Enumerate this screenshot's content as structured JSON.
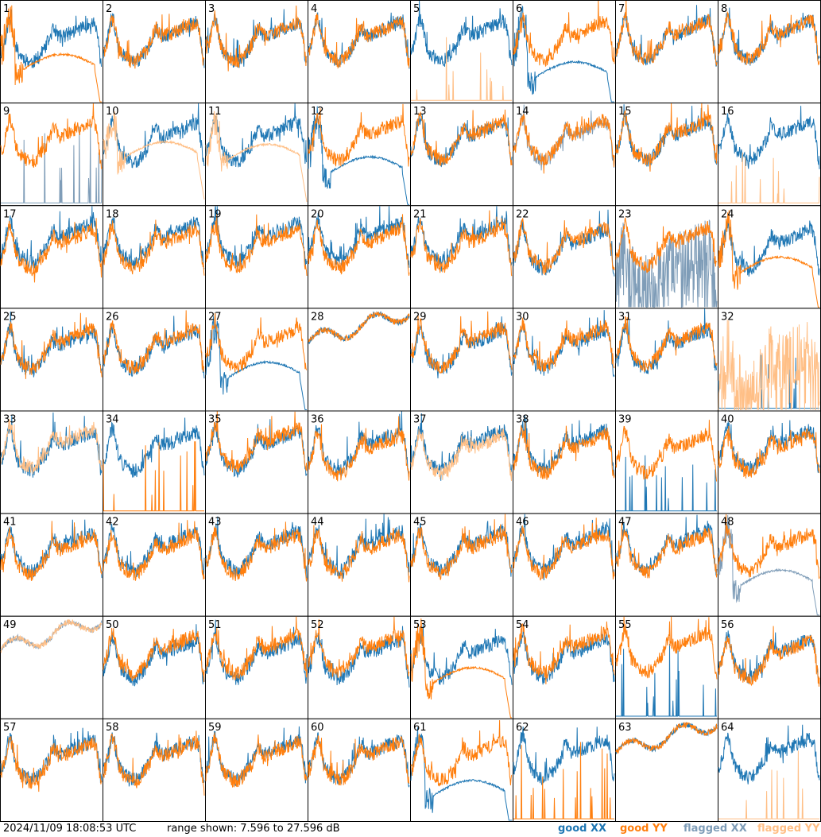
{
  "footer": {
    "timestamp": "2024/11/09 18:08:53 UTC",
    "range_text": "range shown: 7.596 to 27.596 dB"
  },
  "legend": [
    {
      "key": "good_xx",
      "label": "good XX",
      "color": "#1f77b4"
    },
    {
      "key": "good_yy",
      "label": "good YY",
      "color": "#ff7f0e"
    },
    {
      "key": "flagged_xx",
      "label": "flagged XX",
      "color": "#7f9db8"
    },
    {
      "key": "flagged_yy",
      "label": "flagged YY",
      "color": "#ffbf86"
    }
  ],
  "chart_data": {
    "type": "line",
    "title": "",
    "xlabel": "",
    "ylabel": "",
    "ylim": [
      7.596,
      27.596
    ],
    "unit": "dB",
    "grid": {
      "rows": 8,
      "cols": 8
    },
    "panels": [
      {
        "id": "1",
        "xx": "good",
        "yy": "good",
        "xx_profile": "standard",
        "yy_profile": "dropout",
        "yy_level": 14.0
      },
      {
        "id": "2",
        "xx": "good",
        "yy": "good",
        "xx_profile": "standard",
        "yy_profile": "standard"
      },
      {
        "id": "3",
        "xx": "good",
        "yy": "good",
        "xx_profile": "standard",
        "yy_profile": "standard"
      },
      {
        "id": "4",
        "xx": "good",
        "yy": "good",
        "xx_profile": "standard",
        "yy_profile": "standard"
      },
      {
        "id": "5",
        "xx": "good",
        "yy": "flagged",
        "xx_profile": "standard",
        "yy_profile": "spikes"
      },
      {
        "id": "6",
        "xx": "good",
        "yy": "good",
        "xx_profile": "dropout",
        "yy_profile": "standard",
        "xx_level": 12.5
      },
      {
        "id": "7",
        "xx": "good",
        "yy": "good",
        "xx_profile": "standard",
        "yy_profile": "standard"
      },
      {
        "id": "8",
        "xx": "good",
        "yy": "good",
        "xx_profile": "standard",
        "yy_profile": "standard"
      },
      {
        "id": "9",
        "xx": "flagged",
        "yy": "good",
        "xx_profile": "spikes",
        "yy_profile": "standard"
      },
      {
        "id": "10",
        "xx": "good",
        "yy": "flagged",
        "xx_profile": "standard",
        "yy_profile": "dropout",
        "yy_level": 17.0
      },
      {
        "id": "11",
        "xx": "good",
        "yy": "flagged",
        "xx_profile": "standard",
        "yy_profile": "dropout",
        "yy_level": 16.5
      },
      {
        "id": "12",
        "xx": "good",
        "yy": "good",
        "xx_profile": "dropout",
        "yy_profile": "standard",
        "xx_level": 14.0
      },
      {
        "id": "13",
        "xx": "good",
        "yy": "good",
        "xx_profile": "standard",
        "yy_profile": "standard"
      },
      {
        "id": "14",
        "xx": "flagged",
        "yy": "good",
        "xx_profile": "standard",
        "yy_profile": "standard"
      },
      {
        "id": "15",
        "xx": "good",
        "yy": "good",
        "xx_profile": "standard",
        "yy_profile": "standard"
      },
      {
        "id": "16",
        "xx": "good",
        "yy": "flagged",
        "xx_profile": "standard",
        "yy_profile": "spikes"
      },
      {
        "id": "17",
        "xx": "good",
        "yy": "good",
        "xx_profile": "standard",
        "yy_profile": "standard"
      },
      {
        "id": "18",
        "xx": "good",
        "yy": "good",
        "xx_profile": "standard",
        "yy_profile": "standard"
      },
      {
        "id": "19",
        "xx": "good",
        "yy": "good",
        "xx_profile": "standard",
        "yy_profile": "standard"
      },
      {
        "id": "20",
        "xx": "good",
        "yy": "good",
        "xx_profile": "standard",
        "yy_profile": "standard"
      },
      {
        "id": "21",
        "xx": "good",
        "yy": "good",
        "xx_profile": "standard",
        "yy_profile": "standard"
      },
      {
        "id": "22",
        "xx": "good",
        "yy": "good",
        "xx_profile": "standard",
        "yy_profile": "standard"
      },
      {
        "id": "23",
        "xx": "flagged",
        "yy": "good",
        "xx_profile": "noise",
        "yy_profile": "standard"
      },
      {
        "id": "24",
        "xx": "good",
        "yy": "good",
        "xx_profile": "standard",
        "yy_profile": "dropout",
        "yy_level": 14.5
      },
      {
        "id": "25",
        "xx": "good",
        "yy": "good",
        "xx_profile": "standard",
        "yy_profile": "standard"
      },
      {
        "id": "26",
        "xx": "good",
        "yy": "good",
        "xx_profile": "standard",
        "yy_profile": "standard"
      },
      {
        "id": "27",
        "xx": "good",
        "yy": "good",
        "xx_profile": "dropout",
        "yy_profile": "standard",
        "xx_level": 14.0
      },
      {
        "id": "28",
        "xx": "good",
        "yy": "good",
        "xx_profile": "flat",
        "yy_profile": "flat"
      },
      {
        "id": "29",
        "xx": "good",
        "yy": "good",
        "xx_profile": "standard",
        "yy_profile": "standard"
      },
      {
        "id": "30",
        "xx": "good",
        "yy": "good",
        "xx_profile": "standard",
        "yy_profile": "standard"
      },
      {
        "id": "31",
        "xx": "good",
        "yy": "good",
        "xx_profile": "standard",
        "yy_profile": "standard"
      },
      {
        "id": "32",
        "xx": "good",
        "yy": "flagged",
        "xx_profile": "spikes",
        "yy_profile": "noise"
      },
      {
        "id": "33",
        "xx": "good",
        "yy": "flagged",
        "xx_profile": "standard",
        "yy_profile": "standard"
      },
      {
        "id": "34",
        "xx": "good",
        "yy": "good",
        "xx_profile": "standard",
        "yy_profile": "spikes"
      },
      {
        "id": "35",
        "xx": "good",
        "yy": "good",
        "xx_profile": "standard",
        "yy_profile": "standard"
      },
      {
        "id": "36",
        "xx": "good",
        "yy": "good",
        "xx_profile": "standard",
        "yy_profile": "standard"
      },
      {
        "id": "37",
        "xx": "good",
        "yy": "flagged",
        "xx_profile": "standard",
        "yy_profile": "standard"
      },
      {
        "id": "38",
        "xx": "good",
        "yy": "good",
        "xx_profile": "standard",
        "yy_profile": "standard"
      },
      {
        "id": "39",
        "xx": "good",
        "yy": "good",
        "xx_profile": "spikes",
        "yy_profile": "standard"
      },
      {
        "id": "40",
        "xx": "good",
        "yy": "good",
        "xx_profile": "standard",
        "yy_profile": "standard"
      },
      {
        "id": "41",
        "xx": "good",
        "yy": "good",
        "xx_profile": "standard",
        "yy_profile": "standard"
      },
      {
        "id": "42",
        "xx": "good",
        "yy": "good",
        "xx_profile": "standard",
        "yy_profile": "standard"
      },
      {
        "id": "43",
        "xx": "good",
        "yy": "good",
        "xx_profile": "standard",
        "yy_profile": "standard"
      },
      {
        "id": "44",
        "xx": "good",
        "yy": "good",
        "xx_profile": "standard",
        "yy_profile": "standard"
      },
      {
        "id": "45",
        "xx": "good",
        "yy": "good",
        "xx_profile": "standard",
        "yy_profile": "standard"
      },
      {
        "id": "46",
        "xx": "good",
        "yy": "good",
        "xx_profile": "standard",
        "yy_profile": "standard"
      },
      {
        "id": "47",
        "xx": "good",
        "yy": "good",
        "xx_profile": "standard",
        "yy_profile": "standard"
      },
      {
        "id": "48",
        "xx": "flagged",
        "yy": "good",
        "xx_profile": "dropout",
        "yy_profile": "standard",
        "xx_level": 13.5
      },
      {
        "id": "49",
        "xx": "flagged",
        "yy": "flagged",
        "xx_profile": "flat",
        "yy_profile": "flat"
      },
      {
        "id": "50",
        "xx": "good",
        "yy": "good",
        "xx_profile": "standard",
        "yy_profile": "standard"
      },
      {
        "id": "51",
        "xx": "good",
        "yy": "good",
        "xx_profile": "standard",
        "yy_profile": "standard"
      },
      {
        "id": "52",
        "xx": "good",
        "yy": "good",
        "xx_profile": "standard",
        "yy_profile": "standard"
      },
      {
        "id": "53",
        "xx": "good",
        "yy": "good",
        "xx_profile": "standard",
        "yy_profile": "dropout",
        "yy_level": 14.5
      },
      {
        "id": "54",
        "xx": "good",
        "yy": "good",
        "xx_profile": "standard",
        "yy_profile": "standard"
      },
      {
        "id": "55",
        "xx": "good",
        "yy": "good",
        "xx_profile": "spikes",
        "yy_profile": "standard"
      },
      {
        "id": "56",
        "xx": "good",
        "yy": "good",
        "xx_profile": "standard",
        "yy_profile": "standard"
      },
      {
        "id": "57",
        "xx": "good",
        "yy": "good",
        "xx_profile": "standard",
        "yy_profile": "standard"
      },
      {
        "id": "58",
        "xx": "good",
        "yy": "good",
        "xx_profile": "standard",
        "yy_profile": "standard"
      },
      {
        "id": "59",
        "xx": "good",
        "yy": "good",
        "xx_profile": "standard",
        "yy_profile": "standard"
      },
      {
        "id": "60",
        "xx": "good",
        "yy": "good",
        "xx_profile": "standard",
        "yy_profile": "standard"
      },
      {
        "id": "61",
        "xx": "good",
        "yy": "good",
        "xx_profile": "dropout",
        "yy_profile": "standard",
        "xx_level": 12.5
      },
      {
        "id": "62",
        "xx": "good",
        "yy": "good",
        "xx_profile": "standard",
        "yy_profile": "spikes"
      },
      {
        "id": "63",
        "xx": "good",
        "yy": "good",
        "xx_profile": "flat",
        "yy_profile": "flat"
      },
      {
        "id": "64",
        "xx": "good",
        "yy": "flagged",
        "xx_profile": "standard",
        "yy_profile": "spikes"
      }
    ]
  }
}
